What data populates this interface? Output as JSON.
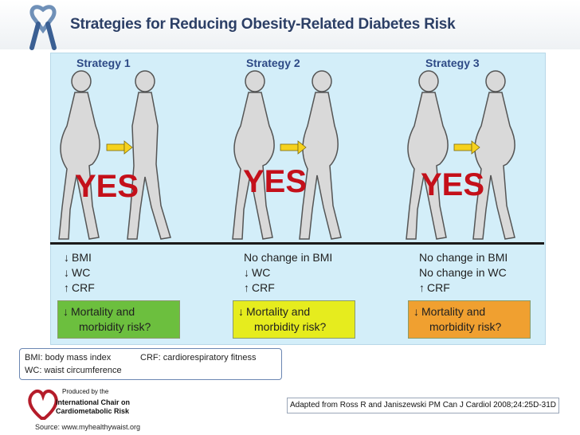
{
  "header": {
    "title": "Strategies for Reducing Obesity-Related Diabetes Risk",
    "icon": "awareness-ribbon-icon",
    "accent": "#2c3f66"
  },
  "strategies": [
    {
      "label": "Strategy 1",
      "verdict": "YES",
      "metrics": [
        {
          "arrow": "↓",
          "text": "BMI"
        },
        {
          "arrow": "↓",
          "text": "WC"
        },
        {
          "arrow": "↑",
          "text": "CRF"
        }
      ],
      "risk": {
        "arrow": "↓",
        "line1": "Mortality and",
        "line2": "morbidity risk?",
        "color": "#6cbf3e"
      }
    },
    {
      "label": "Strategy 2",
      "verdict": "YES",
      "metrics": [
        {
          "arrow": "",
          "text": "No change in BMI"
        },
        {
          "arrow": "↓",
          "text": "WC"
        },
        {
          "arrow": "↑",
          "text": "CRF"
        }
      ],
      "risk": {
        "arrow": "↓",
        "line1": "Mortality and",
        "line2": "morbidity risk?",
        "color": "#e6ec1e"
      }
    },
    {
      "label": "Strategy 3",
      "verdict": "YES",
      "metrics": [
        {
          "arrow": "",
          "text": "No change in BMI"
        },
        {
          "arrow": "",
          "text": "No change in WC"
        },
        {
          "arrow": "↑",
          "text": "CRF"
        }
      ],
      "risk": {
        "arrow": "↓",
        "line1": "Mortality and",
        "line2": "morbidity risk?",
        "color": "#f0a030"
      }
    }
  ],
  "legend": {
    "bmi": "BMI: body mass index",
    "crf": "CRF: cardiorespiratory fitness",
    "wc": "WC: waist circumference"
  },
  "logo": {
    "line1": "Produced by the",
    "line2": "International Chair on",
    "line3": "Cardiometabolic Risk"
  },
  "source": "Source: www.myhealthywaist.org",
  "citation": "Adapted from Ross R and Janiszewski  PM Can J Cardiol 2008;24:25D-31D"
}
